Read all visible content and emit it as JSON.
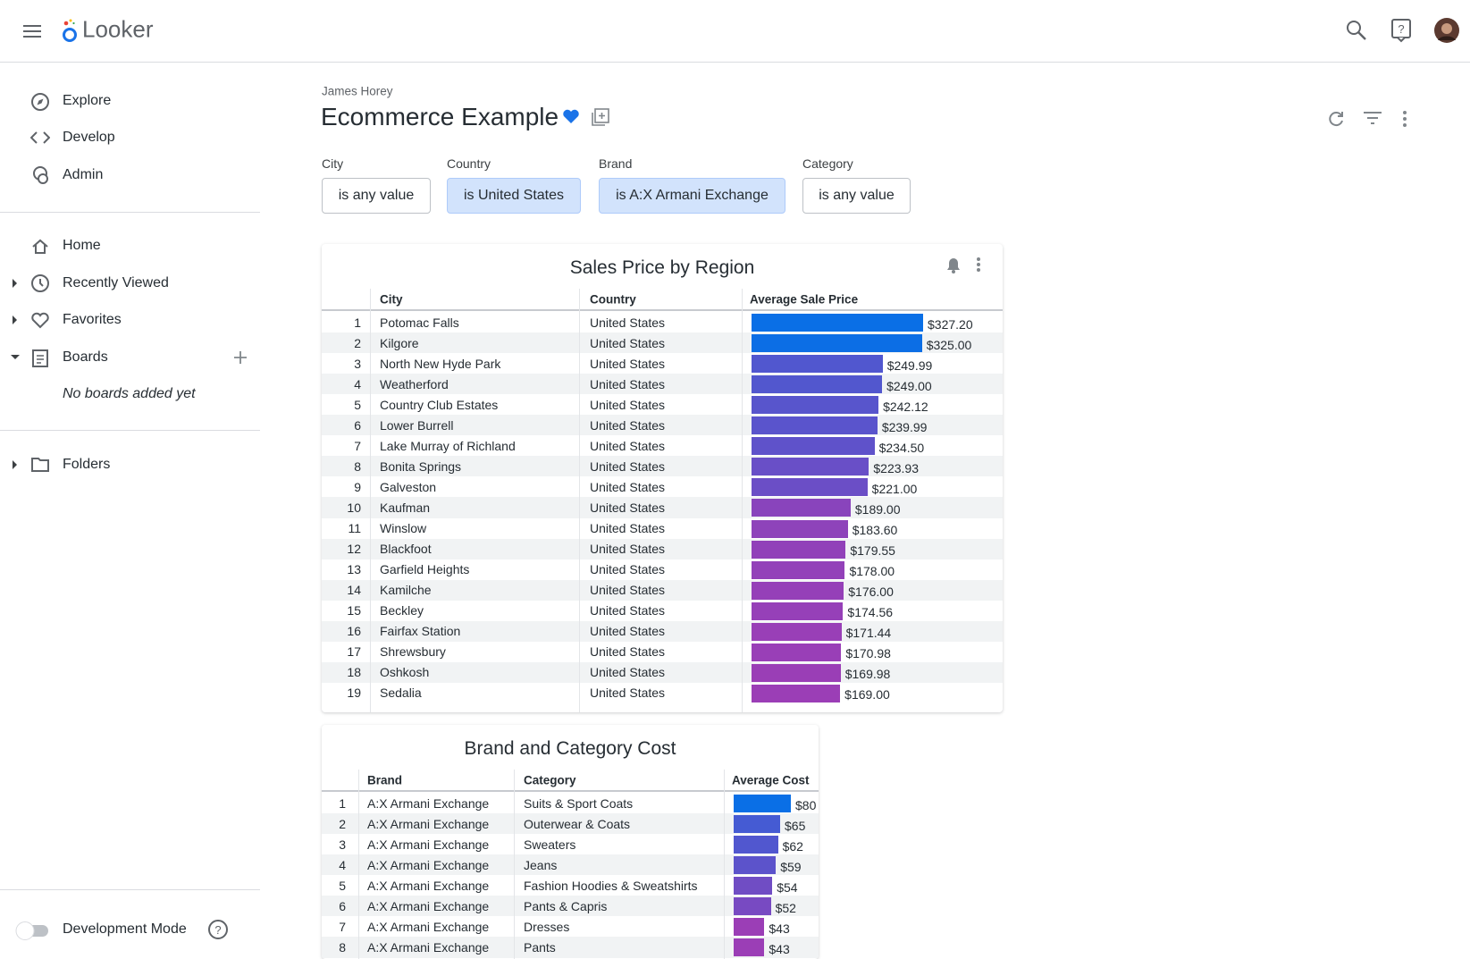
{
  "header": {
    "product": "Looker"
  },
  "sidebar": {
    "nav": [
      "Explore",
      "Develop",
      "Admin"
    ],
    "personal": [
      "Home",
      "Recently Viewed",
      "Favorites",
      "Boards"
    ],
    "boards_empty": "No boards added yet",
    "folders": "Folders",
    "dev_mode": "Development Mode"
  },
  "dashboard": {
    "owner": "James Horey",
    "title": "Ecommerce Example",
    "filters": [
      {
        "label": "City",
        "value": "is any value",
        "active": false
      },
      {
        "label": "Country",
        "value": "is United States",
        "active": true
      },
      {
        "label": "Brand",
        "value": "is A:X Armani Exchange",
        "active": true
      },
      {
        "label": "Category",
        "value": "is any value",
        "active": false
      }
    ]
  },
  "bar_colors": [
    "#0a6fe6",
    "#9b3eb6"
  ],
  "tiles": [
    {
      "title": "Sales Price by Region",
      "columns": [
        "City",
        "Country",
        "Average Sale Price"
      ],
      "rows": [
        {
          "n": 1,
          "cells": [
            "Potomac Falls",
            "United States"
          ],
          "value": 327.2,
          "value_label": "$327.20"
        },
        {
          "n": 2,
          "cells": [
            "Kilgore",
            "United States"
          ],
          "value": 325.0,
          "value_label": "$325.00"
        },
        {
          "n": 3,
          "cells": [
            "North New Hyde Park",
            "United States"
          ],
          "value": 249.99,
          "value_label": "$249.99"
        },
        {
          "n": 4,
          "cells": [
            "Weatherford",
            "United States"
          ],
          "value": 249.0,
          "value_label": "$249.00"
        },
        {
          "n": 5,
          "cells": [
            "Country Club Estates",
            "United States"
          ],
          "value": 242.12,
          "value_label": "$242.12"
        },
        {
          "n": 6,
          "cells": [
            "Lower Burrell",
            "United States"
          ],
          "value": 239.99,
          "value_label": "$239.99"
        },
        {
          "n": 7,
          "cells": [
            "Lake Murray of Richland",
            "United States"
          ],
          "value": 234.5,
          "value_label": "$234.50"
        },
        {
          "n": 8,
          "cells": [
            "Bonita Springs",
            "United States"
          ],
          "value": 223.93,
          "value_label": "$223.93"
        },
        {
          "n": 9,
          "cells": [
            "Galveston",
            "United States"
          ],
          "value": 221.0,
          "value_label": "$221.00"
        },
        {
          "n": 10,
          "cells": [
            "Kaufman",
            "United States"
          ],
          "value": 189.0,
          "value_label": "$189.00"
        },
        {
          "n": 11,
          "cells": [
            "Winslow",
            "United States"
          ],
          "value": 183.6,
          "value_label": "$183.60"
        },
        {
          "n": 12,
          "cells": [
            "Blackfoot",
            "United States"
          ],
          "value": 179.55,
          "value_label": "$179.55"
        },
        {
          "n": 13,
          "cells": [
            "Garfield Heights",
            "United States"
          ],
          "value": 178.0,
          "value_label": "$178.00"
        },
        {
          "n": 14,
          "cells": [
            "Kamilche",
            "United States"
          ],
          "value": 176.0,
          "value_label": "$176.00"
        },
        {
          "n": 15,
          "cells": [
            "Beckley",
            "United States"
          ],
          "value": 174.56,
          "value_label": "$174.56"
        },
        {
          "n": 16,
          "cells": [
            "Fairfax Station",
            "United States"
          ],
          "value": 171.44,
          "value_label": "$171.44"
        },
        {
          "n": 17,
          "cells": [
            "Shrewsbury",
            "United States"
          ],
          "value": 170.98,
          "value_label": "$170.98"
        },
        {
          "n": 18,
          "cells": [
            "Oshkosh",
            "United States"
          ],
          "value": 169.98,
          "value_label": "$169.98"
        },
        {
          "n": 19,
          "cells": [
            "Sedalia",
            "United States"
          ],
          "value": 169.0,
          "value_label": "$169.00"
        }
      ]
    },
    {
      "title": "Brand and Category Cost",
      "columns": [
        "Brand",
        "Category",
        "Average Cost"
      ],
      "rows": [
        {
          "n": 1,
          "cells": [
            "A:X Armani Exchange",
            "Suits & Sport Coats"
          ],
          "value": 80,
          "value_label": "$80"
        },
        {
          "n": 2,
          "cells": [
            "A:X Armani Exchange",
            "Outerwear & Coats"
          ],
          "value": 65,
          "value_label": "$65"
        },
        {
          "n": 3,
          "cells": [
            "A:X Armani Exchange",
            "Sweaters"
          ],
          "value": 62,
          "value_label": "$62"
        },
        {
          "n": 4,
          "cells": [
            "A:X Armani Exchange",
            "Jeans"
          ],
          "value": 59,
          "value_label": "$59"
        },
        {
          "n": 5,
          "cells": [
            "A:X Armani Exchange",
            "Fashion Hoodies & Sweatshirts"
          ],
          "value": 54,
          "value_label": "$54"
        },
        {
          "n": 6,
          "cells": [
            "A:X Armani Exchange",
            "Pants & Capris"
          ],
          "value": 52,
          "value_label": "$52"
        },
        {
          "n": 7,
          "cells": [
            "A:X Armani Exchange",
            "Dresses"
          ],
          "value": 43,
          "value_label": "$43"
        },
        {
          "n": 8,
          "cells": [
            "A:X Armani Exchange",
            "Pants"
          ],
          "value": 43,
          "value_label": "$43"
        }
      ]
    }
  ]
}
